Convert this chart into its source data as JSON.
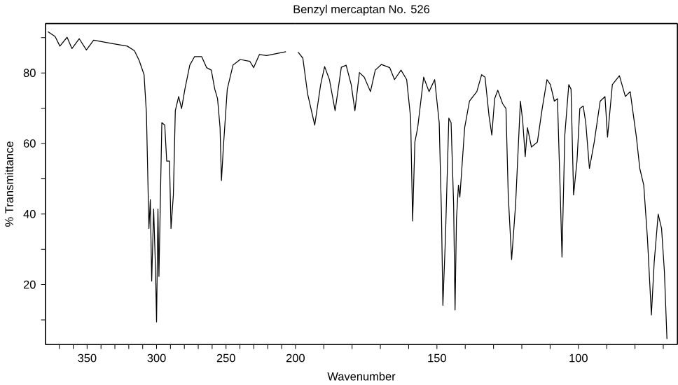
{
  "chart_data": [
    {
      "type": "line",
      "ylabel": "% Transmittance",
      "color": "#000000",
      "grid": false,
      "marker": "none",
      "line_style": "solid",
      "xlim": [
        380,
        200
      ],
      "ylim": [
        3,
        94
      ],
      "xticks": [
        350,
        300,
        250,
        200,
        {
          "value": 370,
          "label": null
        },
        {
          "value": 360,
          "label": null
        },
        {
          "value": 340,
          "label": null
        },
        {
          "value": 330,
          "label": null
        },
        {
          "value": 320,
          "label": null
        },
        {
          "value": 310,
          "label": null
        },
        {
          "value": 290,
          "label": null
        },
        {
          "value": 280,
          "label": null
        },
        {
          "value": 270,
          "label": null
        },
        {
          "value": 260,
          "label": null
        },
        {
          "value": 240,
          "label": null
        },
        {
          "value": 230,
          "label": null
        },
        {
          "value": 220,
          "label": null
        },
        {
          "value": 210,
          "label": null
        }
      ],
      "yticks": [
        20,
        40,
        60,
        80,
        {
          "value": 10,
          "label": null
        },
        {
          "value": 30,
          "label": null
        },
        {
          "value": 50,
          "label": null
        },
        {
          "value": 70,
          "label": null
        },
        {
          "value": 90,
          "label": null
        }
      ],
      "x": [
        378.2,
        373,
        369.6,
        364.4,
        360.9,
        355.7,
        350.5,
        345.3,
        331.5,
        321.1,
        315.9,
        312.5,
        309,
        307.3,
        305.5,
        304.5,
        303.5,
        302.1,
        300.7,
        300,
        299,
        298.3,
        296.2,
        294.1,
        292.7,
        290.7,
        289.6,
        287.9,
        286.5,
        284.1,
        282,
        279.6,
        276.1,
        272.7,
        267.5,
        264,
        260.6,
        258.1,
        256.1,
        254.3,
        253.3,
        251.9,
        249.1,
        245,
        239.8,
        232.9,
        230.1,
        226,
        220.8,
        206.9
      ],
      "values": [
        91.7,
        90.3,
        87.6,
        90.1,
        86.9,
        89.7,
        86.5,
        89.3,
        88.3,
        87.6,
        86.3,
        83.5,
        79.5,
        68.6,
        35.9,
        44.1,
        21.0,
        41.4,
        23.7,
        9.4,
        41.4,
        22.3,
        65.9,
        65.2,
        55,
        55,
        35.9,
        45.4,
        69.3,
        73.3,
        69.9,
        75.4,
        82.2,
        84.6,
        84.6,
        81.5,
        80.8,
        75.4,
        72.7,
        64.5,
        49.5,
        59,
        75.4,
        82.2,
        83.8,
        83.3,
        81.5,
        85.2,
        84.9,
        86
      ]
    },
    {
      "type": "line",
      "title": "Benzyl mercaptan No. 526",
      "xlabel": "Wavenumber",
      "color": "#000000",
      "grid": false,
      "marker": "none",
      "line_style": "solid",
      "tick_labels": "x",
      "xlim": [
        200,
        65
      ],
      "ylim": [
        3,
        94
      ],
      "xticks": [
        150,
        100,
        {
          "value": 190,
          "label": null
        },
        {
          "value": 180,
          "label": null
        },
        {
          "value": 170,
          "label": null
        },
        {
          "value": 160,
          "label": null
        },
        {
          "value": 140,
          "label": null
        },
        {
          "value": 130,
          "label": null
        },
        {
          "value": 120,
          "label": null
        },
        {
          "value": 110,
          "label": null
        },
        {
          "value": 90,
          "label": null
        },
        {
          "value": 80,
          "label": null
        },
        {
          "value": 70,
          "label": null
        }
      ],
      "x": [
        199.1,
        197.4,
        195.7,
        193.2,
        191.1,
        189.7,
        188,
        186,
        183.8,
        182.1,
        180.3,
        179,
        177.4,
        175.7,
        173.5,
        171.8,
        169.6,
        166.7,
        165,
        162.7,
        160.7,
        159.3,
        158.6,
        157.8,
        156.8,
        154.7,
        152.8,
        150.8,
        149.2,
        148.4,
        147.9,
        147,
        145.8,
        145,
        144.1,
        143.6,
        143.1,
        142.4,
        141.9,
        140.2,
        138.5,
        135.9,
        134.2,
        133,
        131.6,
        130.6,
        129.6,
        128.5,
        126.8,
        125.6,
        124.8,
        123.6,
        122.2,
        120.5,
        119.7,
        118.8,
        118,
        116.6,
        114.5,
        112.8,
        111.1,
        109.9,
        108.5,
        107.4,
        106.3,
        105.8,
        104.8,
        103.4,
        102.6,
        101.7,
        100.5,
        99.5,
        98.3,
        97.4,
        96.1,
        94.4,
        92.3,
        90.6,
        89.7,
        88,
        85.5,
        83.4,
        81.7,
        79.5,
        78.3,
        76.9,
        75.6,
        74.2,
        73.2,
        71.8,
        70.6,
        69.6,
        68.7
      ],
      "values": [
        85.9,
        84.2,
        74,
        65.2,
        76.7,
        81.8,
        78.1,
        69.3,
        81.6,
        82.2,
        76.7,
        69.3,
        80.1,
        78.8,
        74.7,
        80.8,
        82.4,
        81.5,
        78.1,
        80.8,
        78.1,
        67.2,
        38,
        60.4,
        64.5,
        78.8,
        74.7,
        78.1,
        65.9,
        40,
        14.1,
        33.2,
        67.2,
        65.9,
        42.7,
        12.8,
        38.6,
        48.2,
        44.8,
        64.5,
        72,
        74.7,
        79.5,
        78.8,
        67.9,
        62.4,
        72.7,
        75.1,
        71.3,
        69.9,
        45.4,
        27.1,
        42.7,
        72,
        66.5,
        56.3,
        64.5,
        59,
        60.4,
        69.9,
        78.1,
        76.7,
        72,
        72.7,
        42.7,
        27.8,
        62.4,
        76.7,
        75.4,
        45.4,
        55,
        69.9,
        70.6,
        65.9,
        52.9,
        60.4,
        72,
        73.3,
        61.8,
        76.7,
        79.2,
        73.3,
        74.7,
        61.8,
        52.9,
        48.2,
        33.2,
        11.4,
        26.4,
        40,
        35.9,
        23.7,
        4.6
      ]
    }
  ]
}
